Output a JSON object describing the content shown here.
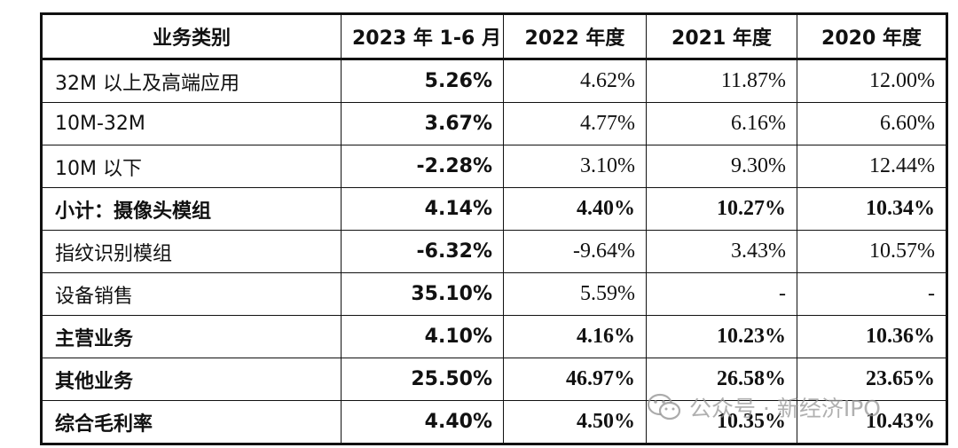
{
  "table": {
    "headers": [
      "业务类别",
      "2023 年 1-6 月",
      "2022 年度",
      "2021 年度",
      "2020 年度"
    ],
    "rows": [
      {
        "label": "32M 以上及高端应用",
        "v1": "5.26%",
        "v2": "4.62%",
        "v3": "11.87%",
        "v4": "12.00%",
        "bold": false
      },
      {
        "label": "10M-32M",
        "v1": "3.67%",
        "v2": "4.77%",
        "v3": "6.16%",
        "v4": "6.60%",
        "bold": false
      },
      {
        "label": "10M 以下",
        "v1": "-2.28%",
        "v2": "3.10%",
        "v3": "9.30%",
        "v4": "12.44%",
        "bold": false
      },
      {
        "label": "小计：摄像头模组",
        "v1": "4.14%",
        "v2": "4.40%",
        "v3": "10.27%",
        "v4": "10.34%",
        "bold": true
      },
      {
        "label": "指纹识别模组",
        "v1": "-6.32%",
        "v2": "-9.64%",
        "v3": "3.43%",
        "v4": "10.57%",
        "bold": false
      },
      {
        "label": "设备销售",
        "v1": "35.10%",
        "v2": "5.59%",
        "v3": "-",
        "v4": "-",
        "bold": false
      },
      {
        "label": "主营业务",
        "v1": "4.10%",
        "v2": "4.16%",
        "v3": "10.23%",
        "v4": "10.36%",
        "bold": true
      },
      {
        "label": "其他业务",
        "v1": "25.50%",
        "v2": "46.97%",
        "v3": "26.58%",
        "v4": "23.65%",
        "bold": true
      },
      {
        "label": "综合毛利率",
        "v1": "4.40%",
        "v2": "4.50%",
        "v3": "10.35%",
        "v4": "10.43%",
        "bold": true
      }
    ]
  },
  "watermark": {
    "icon": "wechat-icon",
    "text": "公众号 · 新经济IPO"
  }
}
